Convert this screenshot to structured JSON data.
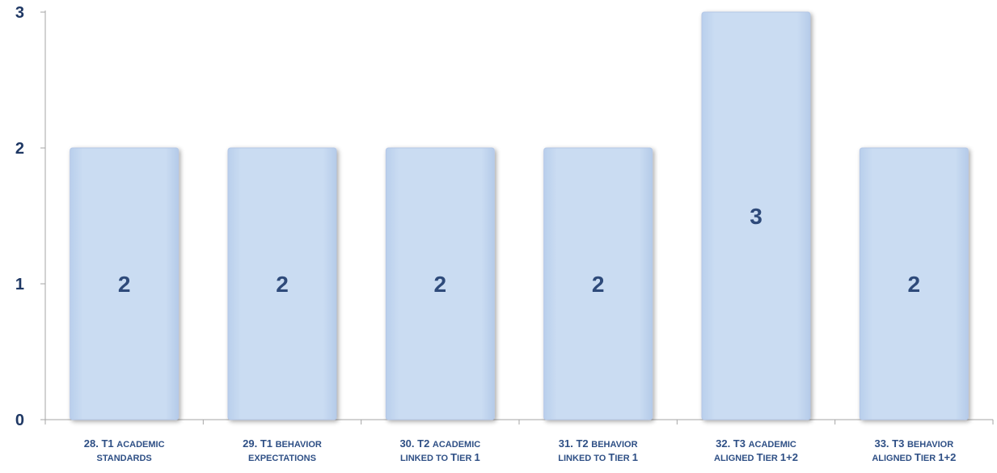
{
  "chart_data": {
    "type": "bar",
    "categories": [
      "28. T1 ACADEMIC STANDARDS",
      "29. T1 BEHAVIOR EXPECTATIONS",
      "30. T2 ACADEMIC LINKED TO TIER 1",
      "31. T2 BEHAVIOR LINKED TO TIER 1",
      "32. T3 ACADEMIC ALIGNED TIER 1+2",
      "33. T3 BEHAVIOR ALIGNED TIER 1+2"
    ],
    "category_label_parts": [
      {
        "line1": [
          {
            "t": "28. T1 ",
            "sc": false
          },
          {
            "t": "ACADEMIC",
            "sc": true
          }
        ],
        "line2": [
          {
            "t": "STANDARDS",
            "sc": true
          }
        ]
      },
      {
        "line1": [
          {
            "t": "29. T1 ",
            "sc": false
          },
          {
            "t": "BEHAVIOR",
            "sc": true
          }
        ],
        "line2": [
          {
            "t": "EXPECTATIONS",
            "sc": true
          }
        ]
      },
      {
        "line1": [
          {
            "t": "30. T2 ",
            "sc": false
          },
          {
            "t": "ACADEMIC",
            "sc": true
          }
        ],
        "line2": [
          {
            "t": "LINKED TO ",
            "sc": true
          },
          {
            "t": "T",
            "sc": false
          },
          {
            "t": "IER ",
            "sc": true
          },
          {
            "t": "1",
            "sc": false
          }
        ]
      },
      {
        "line1": [
          {
            "t": "31. T2 ",
            "sc": false
          },
          {
            "t": "BEHAVIOR",
            "sc": true
          }
        ],
        "line2": [
          {
            "t": "LINKED TO ",
            "sc": true
          },
          {
            "t": "T",
            "sc": false
          },
          {
            "t": "IER ",
            "sc": true
          },
          {
            "t": "1",
            "sc": false
          }
        ]
      },
      {
        "line1": [
          {
            "t": "32. T3 ",
            "sc": false
          },
          {
            "t": "ACADEMIC",
            "sc": true
          }
        ],
        "line2": [
          {
            "t": "ALIGNED ",
            "sc": true
          },
          {
            "t": "T",
            "sc": false
          },
          {
            "t": "IER ",
            "sc": true
          },
          {
            "t": "1+2",
            "sc": false
          }
        ]
      },
      {
        "line1": [
          {
            "t": "33. T3 ",
            "sc": false
          },
          {
            "t": "BEHAVIOR",
            "sc": true
          }
        ],
        "line2": [
          {
            "t": "ALIGNED ",
            "sc": true
          },
          {
            "t": "T",
            "sc": false
          },
          {
            "t": "IER ",
            "sc": true
          },
          {
            "t": "1+2",
            "sc": false
          }
        ]
      }
    ],
    "values": [
      2,
      2,
      2,
      2,
      3,
      2
    ],
    "data_labels": [
      "2",
      "2",
      "2",
      "2",
      "3",
      "2"
    ],
    "yticks": [
      "0",
      "1",
      "2",
      "3"
    ],
    "ylim": [
      0,
      3
    ],
    "grid": false,
    "title": "",
    "xlabel": "",
    "ylabel": "",
    "colors": {
      "bar_fill": "#C6D9F1",
      "bar_edge": "#B4C7E7",
      "label": "#2E4A7A",
      "axis": "#A6A6A6"
    }
  }
}
